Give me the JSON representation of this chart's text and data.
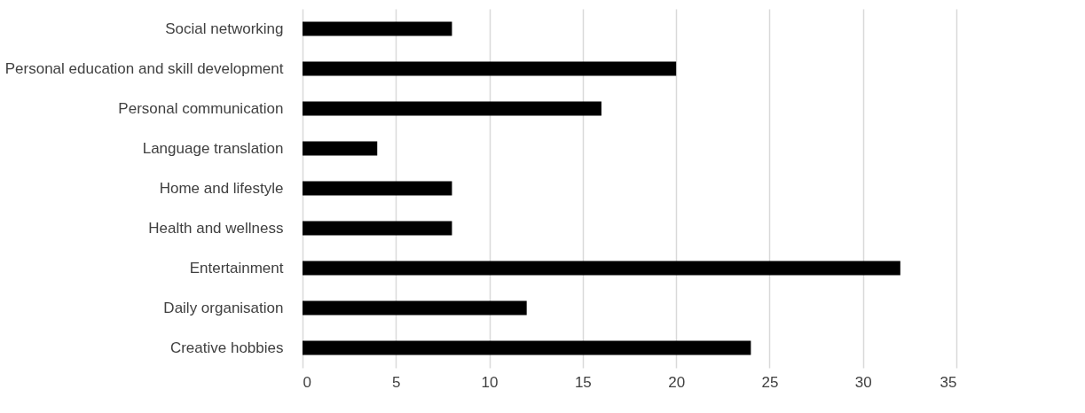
{
  "chart_data": {
    "type": "bar",
    "orientation": "horizontal",
    "categories": [
      "Social networking",
      "Personal education and skill development",
      "Personal communication",
      "Language translation",
      "Home and lifestyle",
      "Health and wellness",
      "Entertainment",
      "Daily organisation",
      "Creative hobbies"
    ],
    "values": [
      8,
      20,
      16,
      4,
      8,
      8,
      32,
      12,
      24
    ],
    "color": "#000000",
    "xlim": [
      0,
      35
    ],
    "xticks": [
      0,
      5,
      10,
      15,
      20,
      25,
      30,
      35
    ],
    "grid": "x"
  }
}
